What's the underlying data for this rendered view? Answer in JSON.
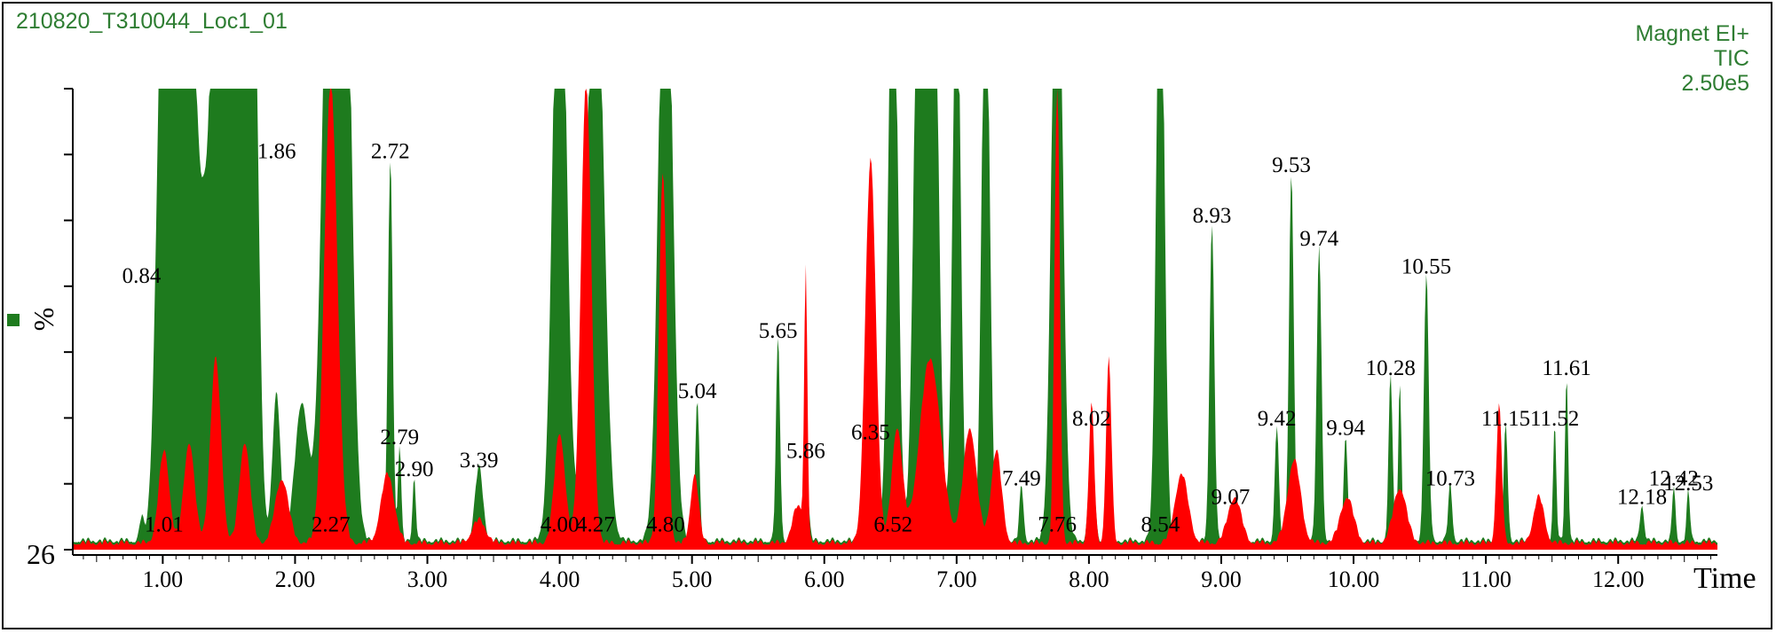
{
  "header": {
    "run_title": "210820_T310044_Loc1_01",
    "instrument": "Magnet EI+",
    "trace": "TIC",
    "scale": "2.50e5"
  },
  "chart_data": {
    "type": "area",
    "xlabel": "Time",
    "ylabel": "%",
    "y_min_label": "26",
    "xlim": [
      0.32,
      12.75
    ],
    "ylim": [
      0,
      100
    ],
    "x_ticks": [
      "1.00",
      "2.00",
      "3.00",
      "4.00",
      "5.00",
      "6.00",
      "7.00",
      "8.00",
      "9.00",
      "10.00",
      "11.00",
      "12.00"
    ],
    "series": [
      {
        "color": "#1e7b1e",
        "peaks": [
          {
            "rt": 0.84,
            "h": 5,
            "w": 0.015
          },
          {
            "rt": 1.01,
            "h": 140,
            "w": 0.05
          },
          {
            "rt": 1.12,
            "h": 120,
            "w": 0.04
          },
          {
            "rt": 1.22,
            "h": 110,
            "w": 0.04
          },
          {
            "rt": 1.31,
            "h": 60,
            "w": 0.04
          },
          {
            "rt": 1.4,
            "h": 130,
            "w": 0.04
          },
          {
            "rt": 1.5,
            "h": 120,
            "w": 0.04
          },
          {
            "rt": 1.6,
            "h": 130,
            "w": 0.04
          },
          {
            "rt": 1.68,
            "h": 140,
            "w": 0.04
          },
          {
            "rt": 1.86,
            "h": 32,
            "w": 0.03
          },
          {
            "rt": 2.05,
            "h": 30,
            "w": 0.05
          },
          {
            "rt": 2.27,
            "h": 160,
            "w": 0.06
          },
          {
            "rt": 2.38,
            "h": 130,
            "w": 0.05
          },
          {
            "rt": 2.72,
            "h": 83,
            "w": 0.018
          },
          {
            "rt": 2.79,
            "h": 21,
            "w": 0.012
          },
          {
            "rt": 2.9,
            "h": 14,
            "w": 0.012
          },
          {
            "rt": 3.39,
            "h": 16,
            "w": 0.03
          },
          {
            "rt": 4.0,
            "h": 150,
            "w": 0.05
          },
          {
            "rt": 4.27,
            "h": 140,
            "w": 0.06
          },
          {
            "rt": 4.8,
            "h": 150,
            "w": 0.05
          },
          {
            "rt": 5.04,
            "h": 31,
            "w": 0.015
          },
          {
            "rt": 5.65,
            "h": 44,
            "w": 0.015
          },
          {
            "rt": 5.86,
            "h": 18,
            "w": 0.018
          },
          {
            "rt": 6.35,
            "h": 55,
            "w": 0.03
          },
          {
            "rt": 6.52,
            "h": 140,
            "w": 0.035
          },
          {
            "rt": 6.72,
            "h": 150,
            "w": 0.04
          },
          {
            "rt": 6.82,
            "h": 150,
            "w": 0.04
          },
          {
            "rt": 7.0,
            "h": 130,
            "w": 0.03
          },
          {
            "rt": 7.22,
            "h": 130,
            "w": 0.03
          },
          {
            "rt": 7.49,
            "h": 12,
            "w": 0.015
          },
          {
            "rt": 7.76,
            "h": 150,
            "w": 0.04
          },
          {
            "rt": 8.02,
            "h": 25,
            "w": 0.02
          },
          {
            "rt": 8.54,
            "h": 140,
            "w": 0.03
          },
          {
            "rt": 8.93,
            "h": 69,
            "w": 0.018
          },
          {
            "rt": 9.07,
            "h": 8,
            "w": 0.015
          },
          {
            "rt": 9.42,
            "h": 25,
            "w": 0.015
          },
          {
            "rt": 9.53,
            "h": 80,
            "w": 0.018
          },
          {
            "rt": 9.74,
            "h": 64,
            "w": 0.018
          },
          {
            "rt": 9.94,
            "h": 23,
            "w": 0.015
          },
          {
            "rt": 10.28,
            "h": 36,
            "w": 0.015
          },
          {
            "rt": 10.35,
            "h": 35,
            "w": 0.012
          },
          {
            "rt": 10.55,
            "h": 58,
            "w": 0.018
          },
          {
            "rt": 10.73,
            "h": 12,
            "w": 0.015
          },
          {
            "rt": 11.15,
            "h": 25,
            "w": 0.015
          },
          {
            "rt": 11.52,
            "h": 25,
            "w": 0.012
          },
          {
            "rt": 11.61,
            "h": 36,
            "w": 0.012
          },
          {
            "rt": 12.18,
            "h": 8,
            "w": 0.015
          },
          {
            "rt": 12.42,
            "h": 12,
            "w": 0.012
          },
          {
            "rt": 12.53,
            "h": 11,
            "w": 0.012
          }
        ]
      },
      {
        "color": "#ff0000",
        "peaks": [
          {
            "rt": 1.01,
            "h": 20,
            "w": 0.04
          },
          {
            "rt": 1.2,
            "h": 22,
            "w": 0.04
          },
          {
            "rt": 1.4,
            "h": 40,
            "w": 0.04
          },
          {
            "rt": 1.62,
            "h": 22,
            "w": 0.04
          },
          {
            "rt": 1.9,
            "h": 14,
            "w": 0.05
          },
          {
            "rt": 2.27,
            "h": 100,
            "w": 0.05
          },
          {
            "rt": 2.7,
            "h": 15,
            "w": 0.05
          },
          {
            "rt": 3.39,
            "h": 5,
            "w": 0.05
          },
          {
            "rt": 4.0,
            "h": 24,
            "w": 0.04
          },
          {
            "rt": 4.2,
            "h": 100,
            "w": 0.04
          },
          {
            "rt": 4.78,
            "h": 80,
            "w": 0.03
          },
          {
            "rt": 5.02,
            "h": 15,
            "w": 0.03
          },
          {
            "rt": 5.8,
            "h": 8,
            "w": 0.04
          },
          {
            "rt": 5.86,
            "h": 58,
            "w": 0.012
          },
          {
            "rt": 6.35,
            "h": 83,
            "w": 0.04
          },
          {
            "rt": 6.55,
            "h": 25,
            "w": 0.04
          },
          {
            "rt": 6.8,
            "h": 40,
            "w": 0.08
          },
          {
            "rt": 7.1,
            "h": 25,
            "w": 0.05
          },
          {
            "rt": 7.3,
            "h": 20,
            "w": 0.04
          },
          {
            "rt": 7.76,
            "h": 100,
            "w": 0.02
          },
          {
            "rt": 8.02,
            "h": 30,
            "w": 0.02
          },
          {
            "rt": 8.15,
            "h": 40,
            "w": 0.02
          },
          {
            "rt": 8.7,
            "h": 15,
            "w": 0.05
          },
          {
            "rt": 9.1,
            "h": 10,
            "w": 0.05
          },
          {
            "rt": 9.55,
            "h": 18,
            "w": 0.05
          },
          {
            "rt": 9.95,
            "h": 10,
            "w": 0.05
          },
          {
            "rt": 10.35,
            "h": 12,
            "w": 0.05
          },
          {
            "rt": 11.1,
            "h": 30,
            "w": 0.02
          },
          {
            "rt": 11.4,
            "h": 10,
            "w": 0.04
          }
        ]
      }
    ],
    "peak_labels": [
      "0.84",
      "1.01",
      "1.86",
      "2.27",
      "2.72",
      "2.79",
      "2.90",
      "3.39",
      "4.00",
      "4.27",
      "4.80",
      "5.04",
      "5.65",
      "5.86",
      "6.35",
      "6.52",
      "7.49",
      "7.76",
      "8.02",
      "8.54",
      "8.93",
      "9.07",
      "9.42",
      "9.53",
      "9.74",
      "9.94",
      "10.28",
      "10.55",
      "10.73",
      "11.15",
      "11.52",
      "11.61",
      "12.18",
      "12.42",
      "12.53"
    ],
    "label_pos": [
      [
        0.84,
        56
      ],
      [
        1.01,
        2
      ],
      [
        1.86,
        83
      ],
      [
        2.27,
        2
      ],
      [
        2.72,
        83
      ],
      [
        2.79,
        21
      ],
      [
        2.9,
        14
      ],
      [
        3.39,
        16
      ],
      [
        4.0,
        2
      ],
      [
        4.27,
        2
      ],
      [
        4.8,
        2
      ],
      [
        5.04,
        31
      ],
      [
        5.65,
        44
      ],
      [
        5.86,
        18
      ],
      [
        6.35,
        22
      ],
      [
        6.52,
        2
      ],
      [
        7.49,
        12
      ],
      [
        7.76,
        2
      ],
      [
        8.02,
        25
      ],
      [
        8.54,
        2
      ],
      [
        8.93,
        69
      ],
      [
        9.07,
        8
      ],
      [
        9.42,
        25
      ],
      [
        9.53,
        80
      ],
      [
        9.74,
        64
      ],
      [
        9.94,
        23
      ],
      [
        10.28,
        36
      ],
      [
        10.55,
        58
      ],
      [
        10.73,
        12
      ],
      [
        11.15,
        25
      ],
      [
        11.52,
        25
      ],
      [
        11.61,
        36
      ],
      [
        12.18,
        8
      ],
      [
        12.42,
        12
      ],
      [
        12.53,
        11
      ]
    ]
  }
}
